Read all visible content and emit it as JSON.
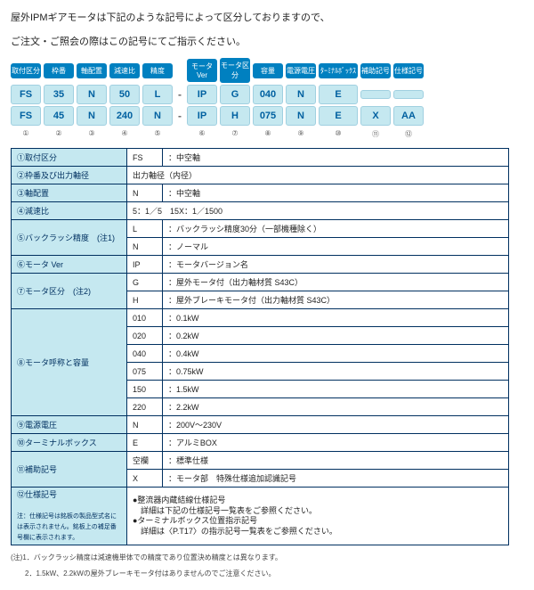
{
  "intro1": "屋外IPMギアモータは下記のような記号によって区分しておりますので、",
  "intro2": "ご注文・ご照会の際はこの記号にてご指示ください。",
  "headers": [
    "取付区分",
    "枠番",
    "軸配置",
    "減速比",
    "精度",
    "モータVer",
    "モータ区分",
    "容量",
    "電源電圧",
    "ﾀｰﾐﾅﾙﾎﾞｯｸｽ",
    "補助記号",
    "仕様記号"
  ],
  "row1": [
    "FS",
    "35",
    "N",
    "50",
    "L",
    "IP",
    "G",
    "040",
    "N",
    "E",
    "",
    ""
  ],
  "row2": [
    "FS",
    "45",
    "N",
    "240",
    "N",
    "IP",
    "H",
    "075",
    "N",
    "E",
    "X",
    "AA"
  ],
  "circ": [
    "①",
    "②",
    "③",
    "④",
    "⑤",
    "⑥",
    "⑦",
    "⑧",
    "⑨",
    "⑩",
    "⑪",
    "⑫"
  ],
  "t": {
    "r1": {
      "l": "①取付区分",
      "c": "FS",
      "d": "：中空軸"
    },
    "r2": {
      "l": "②枠番及び出力軸径",
      "d": "出力軸径（内径）"
    },
    "r3": {
      "l": "③軸配置",
      "c": "N",
      "d": "：中空軸"
    },
    "r4": {
      "l": "④減速比",
      "d": "5：1／5　15X：1／1500"
    },
    "r5": {
      "l": "⑤バックラッシ精度　(注1)",
      "c1": "L",
      "d1": "：バックラッシ精度30分（一部機種除く）",
      "c2": "N",
      "d2": "：ノーマル"
    },
    "r6": {
      "l": "⑥モータ Ver",
      "c": "IP",
      "d": "：モータバージョン名"
    },
    "r7": {
      "l": "⑦モータ区分　(注2)",
      "c1": "G",
      "d1": "：屋外モータ付（出力軸材質 S43C）",
      "c2": "H",
      "d2": "：屋外ブレーキモータ付（出力軸材質 S43C）"
    },
    "r8": {
      "l": "⑧モータ呼称と容量",
      "rows": [
        [
          "010",
          "：0.1kW"
        ],
        [
          "020",
          "：0.2kW"
        ],
        [
          "040",
          "：0.4kW"
        ],
        [
          "075",
          "：0.75kW"
        ],
        [
          "150",
          "：1.5kW"
        ],
        [
          "220",
          "：2.2kW"
        ]
      ]
    },
    "r9": {
      "l": "⑨電源電圧",
      "c": "N",
      "d": "：200V～230V"
    },
    "r10": {
      "l": "⑩ターミナルボックス",
      "c": "E",
      "d": "：アルミBOX"
    },
    "r11": {
      "l": "⑪補助記号",
      "c1": "空欄",
      "d1": "：標準仕様",
      "c2": "X",
      "d2": "：モータ部　特殊仕様追加認識記号"
    },
    "r12": {
      "l": "⑫仕様記号",
      "note": "注：仕様記号は銘板の製品型式名には表示されません。銘板上の補足番号欄に表示されます。",
      "b1": "●整流器内蔵結線仕様記号",
      "b1d": "　詳細は下記の仕様記号一覧表をご参照ください。",
      "b2": "●ターミナルボックス位置指示記号",
      "b2d": "　詳細は〈P.T17〉の指示記号一覧表をご参照ください。"
    }
  },
  "foot1": "(注)1．バックラッシ精度は減速機単体での精度であり位置決め精度とは異なります。",
  "foot2": "　　2．1.5kW、2.2kWの屋外ブレーキモータ付はありませんのでご注意ください。"
}
